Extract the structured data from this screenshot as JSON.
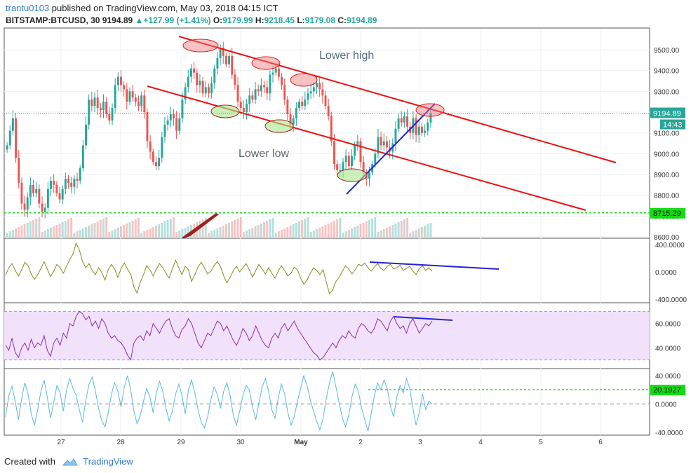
{
  "header": {
    "user": "trantu0103",
    "published": "published on TradingView.com, May 03, 2018 04:15 ICT",
    "symbol": "BITSTAMP:BTCUSD, 30",
    "last": "9194.89",
    "change": "+127.99 (+1.41%)",
    "o_label": "O:",
    "o_val": "9179.99",
    "h_label": "H:",
    "h_val": "9218.45",
    "l_label": "L:",
    "l_val": "9179.08",
    "c_label": "C:",
    "c_val": "9194.89"
  },
  "footer": {
    "created_with": "Created with",
    "brand": "TradingView"
  },
  "chart_data": {
    "type": "candlestick",
    "x_tick_labels": [
      "27",
      "28",
      "29",
      "30",
      "May",
      "2",
      "3",
      "4",
      "5",
      "6"
    ],
    "price_axis": {
      "ticks": [
        "9500.00",
        "9400.00",
        "9300.00",
        "9200.00",
        "9100.00",
        "9000.00",
        "8900.00",
        "8800.00",
        "8700.00",
        "8600.00"
      ],
      "ylim": [
        8600,
        9600
      ],
      "last_price_label": "9194.89",
      "countdown_label": "14:43",
      "support_label": "8715.29",
      "last_price": 9194.89,
      "support_level": 8715.29
    },
    "annotations": {
      "lower_high": "Lower high",
      "lower_low": "Lower low"
    },
    "price_close_series": [
      9040,
      9110,
      9170,
      8980,
      8860,
      8760,
      8730,
      8790,
      8850,
      8810,
      8830,
      8760,
      8720,
      8740,
      8830,
      8870,
      8850,
      8810,
      8780,
      8830,
      8880,
      8860,
      8840,
      8880,
      8870,
      8930,
      9040,
      9140,
      9260,
      9230,
      9270,
      9220,
      9210,
      9250,
      9190,
      9160,
      9220,
      9330,
      9370,
      9330,
      9310,
      9250,
      9300,
      9270,
      9250,
      9230,
      9280,
      9200,
      9060,
      9010,
      8960,
      8940,
      8980,
      9080,
      9140,
      9160,
      9190,
      9170,
      9110,
      9170,
      9260,
      9320,
      9370,
      9410,
      9390,
      9330,
      9350,
      9290,
      9320,
      9290,
      9340,
      9410,
      9460,
      9510,
      9470,
      9430,
      9470,
      9380,
      9330,
      9250,
      9220,
      9200,
      9240,
      9280,
      9260,
      9310,
      9300,
      9330,
      9320,
      9290,
      9380,
      9390,
      9410,
      9370,
      9330,
      9260,
      9190,
      9140,
      9170,
      9220,
      9250,
      9230,
      9260,
      9290,
      9300,
      9320,
      9340,
      9310,
      9280,
      9230,
      9180,
      9060,
      8950,
      8920,
      8920,
      8960,
      8990,
      8940,
      8990,
      9040,
      9060,
      8960,
      8910,
      8880,
      8910,
      8950,
      9000,
      9080,
      9040,
      9060,
      9030,
      9010,
      9050,
      9120,
      9170,
      9150,
      9180,
      9130,
      9100,
      9170,
      9090,
      9130,
      9100,
      9110,
      9150,
      9194.89
    ],
    "indicators": [
      {
        "name": "oscillator_1",
        "ticks": [
          "400.0000",
          "0.0000",
          "-400.0000"
        ],
        "ylim": [
          -430,
          470
        ],
        "values": [
          -50,
          60,
          120,
          20,
          -60,
          30,
          140,
          90,
          -30,
          -110,
          -40,
          50,
          150,
          40,
          -70,
          10,
          110,
          60,
          -20,
          80,
          180,
          260,
          420,
          320,
          150,
          60,
          120,
          20,
          -40,
          60,
          -10,
          -120,
          30,
          110,
          40,
          -80,
          50,
          130,
          40,
          -30,
          -220,
          -310,
          -150,
          -40,
          90,
          30,
          -60,
          40,
          120,
          60,
          -20,
          -90,
          40,
          170,
          60,
          -40,
          80,
          30,
          -140,
          -40,
          70,
          140,
          60,
          -30,
          10,
          90,
          150,
          80,
          -60,
          -160,
          -80,
          20,
          80,
          0,
          60,
          120,
          30,
          -80,
          20,
          110,
          40,
          -30,
          60,
          -20,
          -90,
          10,
          90,
          20,
          -60,
          -20,
          70,
          30,
          -90,
          -180,
          -120,
          -20,
          60,
          20,
          -40,
          30,
          -150,
          -320,
          -260,
          -140,
          -80,
          10,
          90,
          40,
          -30,
          30,
          110,
          90,
          130,
          60,
          10,
          70,
          120,
          50,
          20,
          80,
          110,
          40,
          60,
          100,
          20,
          50,
          80,
          10,
          -40,
          50,
          90,
          20,
          60,
          10
        ],
        "trendline_label": ""
      },
      {
        "name": "rsi",
        "ticks": [
          "60.0000",
          "40.0000"
        ],
        "ylim": [
          24,
          76
        ],
        "bands": [
          70,
          30
        ],
        "values": [
          42,
          38,
          48,
          36,
          32,
          40,
          44,
          38,
          47,
          40,
          44,
          42,
          50,
          38,
          33,
          44,
          48,
          42,
          52,
          48,
          60,
          58,
          66,
          70,
          68,
          63,
          66,
          58,
          62,
          56,
          64,
          60,
          52,
          48,
          50,
          46,
          44,
          40,
          34,
          30,
          44,
          48,
          50,
          46,
          54,
          50,
          60,
          56,
          52,
          58,
          62,
          64,
          56,
          50,
          48,
          55,
          58,
          64,
          60,
          52,
          44,
          40,
          46,
          52,
          50,
          56,
          62,
          60,
          54,
          58,
          52,
          46,
          42,
          48,
          56,
          52,
          46,
          50,
          58,
          52,
          46,
          42,
          40,
          48,
          52,
          48,
          56,
          60,
          54,
          58,
          62,
          56,
          52,
          48,
          44,
          40,
          36,
          34,
          30,
          32,
          36,
          40,
          44,
          40,
          46,
          50,
          48,
          54,
          50,
          48,
          56,
          60,
          58,
          54,
          52,
          56,
          64,
          62,
          58,
          54,
          62,
          66,
          60,
          56,
          58,
          52,
          60,
          64,
          58,
          52,
          56,
          60,
          58,
          62
        ]
      },
      {
        "name": "oscillator_3",
        "ticks": [
          "40.0000",
          "0.0000",
          "-40.0000"
        ],
        "ylim": [
          -42,
          48
        ],
        "level_label": "20.1927",
        "level": 20.1927,
        "values": [
          -18,
          12,
          25,
          4,
          -22,
          8,
          30,
          14,
          -14,
          -30,
          -8,
          18,
          34,
          10,
          -20,
          2,
          26,
          16,
          -10,
          20,
          36,
          22,
          12,
          -8,
          -26,
          6,
          28,
          38,
          18,
          -6,
          -24,
          -32,
          -12,
          14,
          30,
          18,
          -4,
          24,
          40,
          20,
          -10,
          -28,
          -16,
          4,
          22,
          10,
          -12,
          16,
          32,
          18,
          -6,
          -24,
          -10,
          14,
          28,
          12,
          -14,
          20,
          34,
          16,
          -8,
          -26,
          -34,
          -18,
          6,
          24,
          14,
          -6,
          18,
          30,
          12,
          -16,
          -30,
          -10,
          12,
          26,
          20,
          -4,
          -22,
          2,
          24,
          36,
          18,
          -8,
          -20,
          8,
          28,
          14,
          -12,
          -30,
          -18,
          4,
          22,
          40,
          26,
          6,
          -10,
          -24,
          -36,
          -20,
          8,
          30,
          46,
          24,
          2,
          -20,
          -32,
          -16,
          10,
          28,
          18,
          -6,
          -22,
          -38,
          -14,
          12,
          30,
          20,
          34,
          22,
          -4,
          -18,
          10,
          26,
          16,
          36,
          22,
          -6,
          -30,
          -12,
          14,
          -8,
          4,
          0
        ]
      }
    ]
  }
}
